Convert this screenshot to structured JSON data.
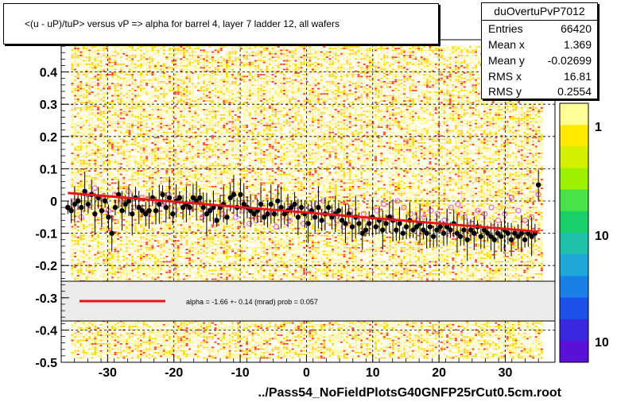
{
  "title": "<(u - uP)/tuP> versus   vP => alpha for barrel 4, layer 7 ladder 12, all wafers",
  "footer": "../Pass54_NoFieldPlotsG40GNFP25rCut0.5cm.root",
  "stats": {
    "name": "duOvertuPvP7012",
    "rows": [
      {
        "label": "Entries",
        "value": "66420"
      },
      {
        "label": "Mean x",
        "value": "1.369"
      },
      {
        "label": "Mean y",
        "value": "-0.02699"
      },
      {
        "label": "RMS x",
        "value": "16.81"
      },
      {
        "label": "RMS y",
        "value": "0.2554"
      }
    ]
  },
  "fit_legend": "alpha =   -1.66 +-  0.14 (mrad) prob = 0.057",
  "palette_labels": [
    "1",
    "10",
    "10"
  ],
  "colors": {
    "fit_line": "#e8151b",
    "profile_points": "#000000",
    "open_points": "#e24fd6",
    "heat_low": "#fff8b0",
    "heat_mid": "#ffd200",
    "heat_high": "#ff3a1a"
  },
  "chart_data": {
    "type": "heatmap",
    "title": "<(u - uP)/tuP> versus   vP => alpha for barrel 4, layer 7 ladder 12, all wafers",
    "xlabel": "",
    "ylabel": "",
    "xlim": [
      -37,
      37.5
    ],
    "ylim": [
      -0.5,
      0.5
    ],
    "x_ticks": [
      -30,
      -20,
      -10,
      0,
      10,
      20,
      30
    ],
    "y_ticks": [
      -0.5,
      -0.4,
      -0.3,
      -0.2,
      -0.1,
      0,
      0.1,
      0.2,
      0.3,
      0.4
    ],
    "y_tick_labels": [
      "-0.5",
      "-0.4",
      "-0.3",
      "-0.2",
      "-0.1",
      "0",
      "0.1",
      "0.2",
      "0.3",
      "0.4"
    ],
    "x_tick_labels": [
      "-30",
      "-20",
      "-10",
      "0",
      "10",
      "20",
      "30"
    ],
    "grid": true,
    "fit": {
      "name": "alpha",
      "x": [
        -36,
        35
      ],
      "y": [
        0.025,
        -0.095
      ]
    },
    "profile_x_range": [
      -36,
      35
    ],
    "profile_y": [
      -0.02,
      -0.03,
      -0.01,
      0.0,
      -0.02,
      0.03,
      -0.01,
      0.02,
      -0.04,
      0.01,
      -0.03,
      0.0,
      -0.05,
      -0.1,
      -0.02,
      0.02,
      -0.03,
      -0.01,
      0.0,
      -0.04,
      0.01,
      -0.02,
      -0.03,
      -0.04,
      -0.03,
      0.01,
      -0.03,
      -0.01,
      0.02,
      -0.02,
      0.01,
      -0.04,
      0.0,
      0.01,
      -0.02,
      -0.01,
      -0.02,
      0.01,
      0.0,
      0.01,
      -0.02,
      -0.04,
      -0.03,
      -0.02,
      -0.06,
      -0.02,
      -0.01,
      -0.05,
      0.01,
      0.02,
      -0.02,
      0.02,
      -0.01,
      -0.02,
      -0.03,
      -0.04,
      -0.03,
      -0.01,
      -0.05,
      -0.04,
      -0.01,
      -0.04,
      0.0,
      -0.02,
      -0.04,
      -0.03,
      -0.02,
      -0.01,
      -0.05,
      -0.02,
      -0.04,
      -0.07,
      -0.03,
      -0.05,
      -0.02,
      -0.06,
      -0.04,
      -0.02,
      -0.05,
      -0.04,
      -0.03,
      -0.06,
      -0.07,
      -0.04,
      -0.08,
      -0.05,
      -0.07,
      -0.1,
      -0.09,
      -0.07,
      -0.05,
      -0.08,
      -0.06,
      -0.09,
      -0.07,
      -0.05,
      -0.06,
      -0.09,
      -0.07,
      -0.1,
      -0.08,
      -0.06,
      -0.09,
      -0.08,
      -0.07,
      -0.09,
      -0.1,
      -0.08,
      -0.11,
      -0.09,
      -0.08,
      -0.1,
      -0.08,
      -0.09,
      -0.07,
      -0.1,
      -0.11,
      -0.09,
      -0.12,
      -0.09,
      -0.1,
      -0.08,
      -0.11,
      -0.09,
      -0.1,
      -0.11,
      -0.12,
      -0.1,
      -0.11,
      -0.09,
      -0.1,
      -0.12,
      -0.1,
      -0.11,
      -0.1,
      -0.12,
      -0.1,
      -0.11,
      -0.1,
      0.05
    ],
    "open_points_y": [
      -0.02,
      0.0,
      -0.05,
      0.02,
      0.04,
      0.01,
      -0.03,
      0.02,
      0.0,
      0.03,
      -0.02,
      0.01,
      -0.04,
      0.0,
      -0.01,
      0.02,
      -0.03,
      -0.01,
      -0.02,
      0.0,
      -0.05,
      -0.03,
      -0.06,
      -0.04,
      -0.02,
      -0.05,
      -0.03,
      -0.07,
      -0.06,
      -0.05,
      -0.04,
      -0.08,
      -0.05,
      -0.06,
      -0.03,
      -0.07,
      -0.02,
      -0.01,
      0.0,
      -0.04,
      -0.06,
      -0.08,
      -0.03,
      -0.05,
      -0.04,
      -0.06,
      -0.03,
      -0.01,
      -0.05,
      0.0,
      -0.02,
      -0.04,
      -0.06,
      -0.05,
      -0.03,
      -0.04,
      -0.06,
      -0.02,
      -0.01,
      -0.05,
      -0.07,
      -0.03,
      -0.04,
      -0.02,
      -0.06,
      -0.04,
      0.01,
      -0.03,
      -0.06,
      -0.05,
      0.02
    ]
  }
}
